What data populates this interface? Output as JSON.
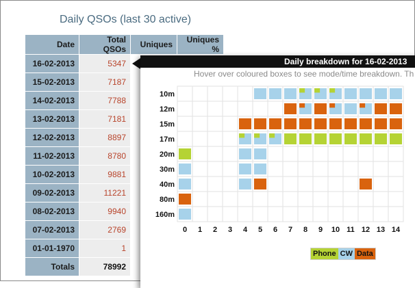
{
  "page": {
    "title": "Daily QSOs (last 30 active)"
  },
  "table": {
    "headers": [
      "Date",
      "Total QSOs",
      "Uniques",
      "Uniques %"
    ],
    "rows": [
      {
        "date": "16-02-2013",
        "total": "5347"
      },
      {
        "date": "15-02-2013",
        "total": "7187"
      },
      {
        "date": "14-02-2013",
        "total": "7788"
      },
      {
        "date": "13-02-2013",
        "total": "7181"
      },
      {
        "date": "12-02-2013",
        "total": "8897"
      },
      {
        "date": "11-02-2013",
        "total": "8780"
      },
      {
        "date": "10-02-2013",
        "total": "9881"
      },
      {
        "date": "09-02-2013",
        "total": "11221"
      },
      {
        "date": "08-02-2013",
        "total": "9940"
      },
      {
        "date": "07-02-2013",
        "total": "2769"
      },
      {
        "date": "01-01-1970",
        "total": "1"
      }
    ],
    "totals": {
      "label": "Totals",
      "total": "78992"
    }
  },
  "popup": {
    "title": "Daily breakdown for 16-02-2013",
    "subtitle": "Hover over coloured boxes to see mode/time breakdown. Th",
    "bands": [
      "10m",
      "12m",
      "15m",
      "17m",
      "20m",
      "30m",
      "40m",
      "80m",
      "160m"
    ],
    "hours": [
      "0",
      "1",
      "2",
      "3",
      "4",
      "5",
      "6",
      "7",
      "8",
      "9",
      "10",
      "11",
      "12",
      "13",
      "14"
    ],
    "colors": {
      "phone": "#b5d334",
      "cw": "#a7d2ea",
      "data": "#d9630e"
    },
    "cells": [
      [
        "",
        "",
        "",
        "",
        "",
        "cw",
        "cw",
        "cw",
        "cw+phone",
        "cw+phone",
        "cw+phone",
        "cw",
        "cw",
        "cw",
        "cw"
      ],
      [
        "",
        "",
        "",
        "",
        "",
        "",
        "",
        "data",
        "cw+data",
        "data",
        "cw+data",
        "cw",
        "cw+data",
        "data",
        "data"
      ],
      [
        "",
        "",
        "",
        "",
        "data",
        "data",
        "data",
        "data",
        "data",
        "data",
        "data",
        "data",
        "data",
        "data",
        "data"
      ],
      [
        "",
        "",
        "",
        "",
        "cw+phone",
        "cw+phone",
        "cw+phone",
        "phone",
        "phone",
        "phone",
        "phone",
        "phone",
        "phone",
        "phone",
        "phone"
      ],
      [
        "phone",
        "",
        "",
        "",
        "cw",
        "cw",
        "",
        "",
        "",
        "",
        "",
        "",
        "",
        "",
        ""
      ],
      [
        "cw",
        "",
        "",
        "",
        "cw",
        "cw",
        "",
        "",
        "",
        "",
        "",
        "",
        "",
        "",
        ""
      ],
      [
        "cw",
        "",
        "",
        "",
        "cw",
        "data",
        "",
        "",
        "",
        "",
        "",
        "",
        "data",
        "",
        ""
      ],
      [
        "data",
        "",
        "",
        "",
        "",
        "",
        "",
        "",
        "",
        "",
        "",
        "",
        "",
        "",
        ""
      ],
      [
        "cw",
        "",
        "",
        "",
        "",
        "",
        "",
        "",
        "",
        "",
        "",
        "",
        "",
        "",
        ""
      ]
    ],
    "legend": {
      "phone": "Phone",
      "cw": "CW",
      "data": "Data"
    }
  }
}
